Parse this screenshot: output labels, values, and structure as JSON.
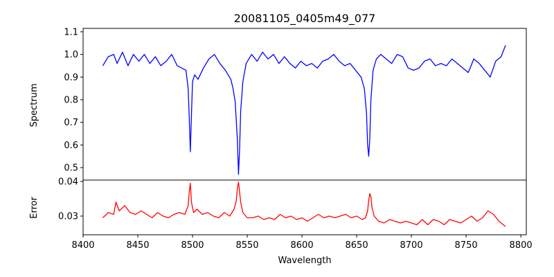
{
  "chart_data": {
    "type": "line",
    "title": "20081105_0405m49_077",
    "xlabel": "Wavelength",
    "xlim": [
      8400,
      8805
    ],
    "xticks": [
      8400,
      8450,
      8500,
      8550,
      8600,
      8650,
      8700,
      8750,
      8800
    ],
    "xtick_labels": [
      "8400",
      "8450",
      "8500",
      "8550",
      "8600",
      "8650",
      "8700",
      "8750",
      "8800"
    ],
    "grid": false,
    "legend": "none",
    "panels": [
      {
        "id": "spectrum",
        "ylabel": "Spectrum",
        "ylim": [
          0.445,
          1.115
        ],
        "yticks": [
          0.5,
          0.6,
          0.7,
          0.8,
          0.9,
          1.0,
          1.1
        ],
        "ytick_labels": [
          "0.5",
          "0.6",
          "0.7",
          "0.8",
          "0.9",
          "1.0",
          "1.1"
        ],
        "color": "#0000ff",
        "series": [
          {
            "x": [
              8418,
              8423,
              8428,
              8431,
              8436,
              8441,
              8446,
              8451,
              8456,
              8461,
              8466,
              8471,
              8476,
              8481,
              8486,
              8490,
              8494,
              8496,
              8497,
              8498,
              8499,
              8500,
              8502,
              8505,
              8510,
              8515,
              8520,
              8525,
              8530,
              8535,
              8537,
              8539,
              8541,
              8542,
              8543,
              8544,
              8546,
              8549,
              8554,
              8559,
              8564,
              8569,
              8574,
              8579,
              8584,
              8589,
              8594,
              8599,
              8604,
              8609,
              8614,
              8619,
              8624,
              8629,
              8634,
              8639,
              8644,
              8649,
              8654,
              8657,
              8659,
              8660,
              8661,
              8662,
              8663,
              8665,
              8668,
              8672,
              8677,
              8682,
              8687,
              8692,
              8697,
              8702,
              8707,
              8712,
              8717,
              8722,
              8727,
              8732,
              8737,
              8742,
              8747,
              8752,
              8757,
              8762,
              8767,
              8772,
              8777,
              8782,
              8786
            ],
            "y": [
              0.95,
              0.99,
              1.0,
              0.96,
              1.01,
              0.95,
              1.0,
              0.97,
              1.0,
              0.96,
              0.99,
              0.95,
              0.97,
              1.0,
              0.95,
              0.94,
              0.93,
              0.85,
              0.72,
              0.57,
              0.73,
              0.88,
              0.91,
              0.89,
              0.94,
              0.98,
              1.0,
              0.96,
              0.93,
              0.89,
              0.85,
              0.79,
              0.62,
              0.47,
              0.58,
              0.75,
              0.88,
              0.96,
              1.0,
              0.97,
              1.01,
              0.98,
              1.0,
              0.96,
              0.99,
              0.96,
              0.94,
              0.97,
              0.95,
              0.96,
              0.94,
              0.97,
              0.98,
              1.0,
              0.97,
              0.95,
              0.96,
              0.93,
              0.9,
              0.85,
              0.74,
              0.6,
              0.55,
              0.63,
              0.8,
              0.93,
              0.98,
              1.0,
              0.98,
              0.96,
              1.0,
              0.99,
              0.94,
              0.93,
              0.94,
              0.97,
              0.98,
              0.95,
              0.96,
              0.95,
              0.98,
              0.96,
              0.94,
              0.92,
              0.98,
              0.96,
              0.93,
              0.9,
              0.97,
              0.99,
              1.04
            ]
          }
        ]
      },
      {
        "id": "error",
        "ylabel": "Error",
        "ylim": [
          0.0246,
          0.0404
        ],
        "yticks": [
          0.03,
          0.04
        ],
        "ytick_labels": [
          "0.03",
          "0.04"
        ],
        "color": "#ff0000",
        "series": [
          {
            "x": [
              8418,
              8423,
              8428,
              8430,
              8433,
              8438,
              8443,
              8448,
              8453,
              8458,
              8463,
              8468,
              8473,
              8478,
              8483,
              8488,
              8493,
              8496,
              8497,
              8498,
              8499,
              8501,
              8504,
              8509,
              8514,
              8519,
              8524,
              8529,
              8534,
              8538,
              8540,
              8541,
              8542,
              8543,
              8544,
              8546,
              8550,
              8555,
              8560,
              8565,
              8570,
              8575,
              8580,
              8585,
              8590,
              8595,
              8600,
              8605,
              8610,
              8615,
              8620,
              8625,
              8630,
              8635,
              8640,
              8645,
              8650,
              8655,
              8658,
              8660,
              8661,
              8662,
              8663,
              8664,
              8666,
              8670,
              8675,
              8680,
              8685,
              8690,
              8695,
              8700,
              8705,
              8710,
              8715,
              8720,
              8725,
              8730,
              8735,
              8740,
              8745,
              8750,
              8755,
              8760,
              8765,
              8770,
              8775,
              8780,
              8786
            ],
            "y": [
              0.0295,
              0.031,
              0.0305,
              0.034,
              0.0315,
              0.033,
              0.031,
              0.0305,
              0.0315,
              0.0305,
              0.0295,
              0.031,
              0.03,
              0.0295,
              0.0305,
              0.031,
              0.0305,
              0.033,
              0.037,
              0.0395,
              0.034,
              0.031,
              0.032,
              0.0305,
              0.031,
              0.03,
              0.0295,
              0.031,
              0.03,
              0.032,
              0.0345,
              0.038,
              0.0398,
              0.037,
              0.034,
              0.031,
              0.0295,
              0.0295,
              0.03,
              0.029,
              0.0295,
              0.029,
              0.0305,
              0.0295,
              0.03,
              0.029,
              0.0295,
              0.0285,
              0.0295,
              0.0305,
              0.0295,
              0.03,
              0.0295,
              0.03,
              0.0305,
              0.0295,
              0.03,
              0.029,
              0.0295,
              0.0315,
              0.0345,
              0.0365,
              0.0355,
              0.0325,
              0.03,
              0.0285,
              0.028,
              0.029,
              0.0285,
              0.028,
              0.0285,
              0.028,
              0.0275,
              0.029,
              0.0275,
              0.029,
              0.0285,
              0.0275,
              0.029,
              0.0285,
              0.028,
              0.029,
              0.03,
              0.0285,
              0.0295,
              0.0315,
              0.0305,
              0.0285,
              0.027
            ]
          }
        ]
      }
    ]
  }
}
